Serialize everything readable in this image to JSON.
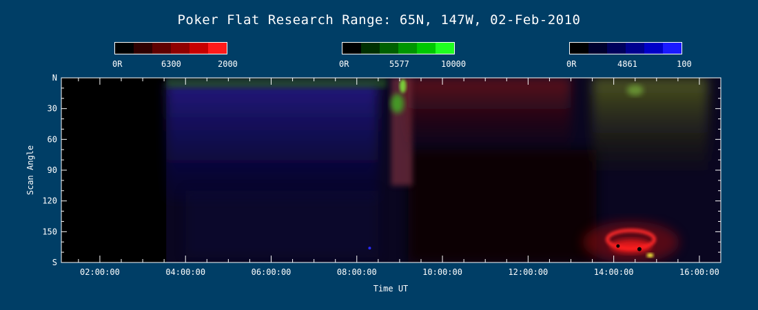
{
  "title": "Poker Flat Research Range: 65N, 147W, 02-Feb-2010",
  "colorbars": [
    {
      "name": "red",
      "min_label": "0R",
      "center_label": "6300",
      "max_label": "2000",
      "colors": [
        "#000000",
        "#300000",
        "#600000",
        "#900000",
        "#c80000",
        "#ff1a1a"
      ]
    },
    {
      "name": "green",
      "min_label": "0R",
      "center_label": "5577",
      "max_label": "10000",
      "colors": [
        "#000000",
        "#003000",
        "#006000",
        "#009600",
        "#00c800",
        "#20ff20"
      ]
    },
    {
      "name": "blue",
      "min_label": "0R",
      "center_label": "4861",
      "max_label": "100",
      "colors": [
        "#000000",
        "#00002e",
        "#00005c",
        "#000090",
        "#0000c8",
        "#1a1aff"
      ]
    }
  ],
  "chart_data": {
    "type": "heatmap",
    "title": "Poker Flat Research Range: 65N, 147W, 02-Feb-2010",
    "xlabel": "Time UT",
    "ylabel": "Scan Angle",
    "x_ticks": [
      "02:00:00",
      "04:00:00",
      "06:00:00",
      "08:00:00",
      "10:00:00",
      "12:00:00",
      "14:00:00",
      "16:00:00"
    ],
    "x_tick_hours": [
      2,
      4,
      6,
      8,
      10,
      12,
      14,
      16
    ],
    "xlim_hours": [
      1.1,
      16.5
    ],
    "y_ticks": [
      "N",
      "30",
      "60",
      "90",
      "120",
      "150",
      "S"
    ],
    "y_tick_values": [
      0,
      30,
      60,
      90,
      120,
      150,
      180
    ],
    "ylim": [
      0,
      180
    ],
    "channels": [
      "6300 (red)",
      "5577 (green)",
      "4861 (blue)"
    ],
    "data_start_hour": 3.55,
    "features": [
      {
        "hour_start": 3.55,
        "hour_end": 8.5,
        "angle_start": 5,
        "angle_end": 120,
        "dominant": "blue",
        "intensity": 0.35
      },
      {
        "hour_start": 3.55,
        "hour_end": 8.7,
        "angle_start": 0,
        "angle_end": 10,
        "dominant": "green",
        "intensity": 0.45
      },
      {
        "hour_start": 8.8,
        "hour_end": 9.3,
        "angle_start": 0,
        "angle_end": 105,
        "dominant": "red-green",
        "intensity": 0.8
      },
      {
        "hour_start": 9.2,
        "hour_end": 13.0,
        "angle_start": 0,
        "angle_end": 70,
        "dominant": "red",
        "intensity": 0.3
      },
      {
        "hour_start": 13.5,
        "hour_end": 16.2,
        "angle_start": 0,
        "angle_end": 90,
        "dominant": "yellow-green",
        "intensity": 0.4
      },
      {
        "hour_start": 13.8,
        "hour_end": 15.0,
        "angle_start": 145,
        "angle_end": 170,
        "dominant": "red",
        "intensity": 1.0
      }
    ]
  }
}
